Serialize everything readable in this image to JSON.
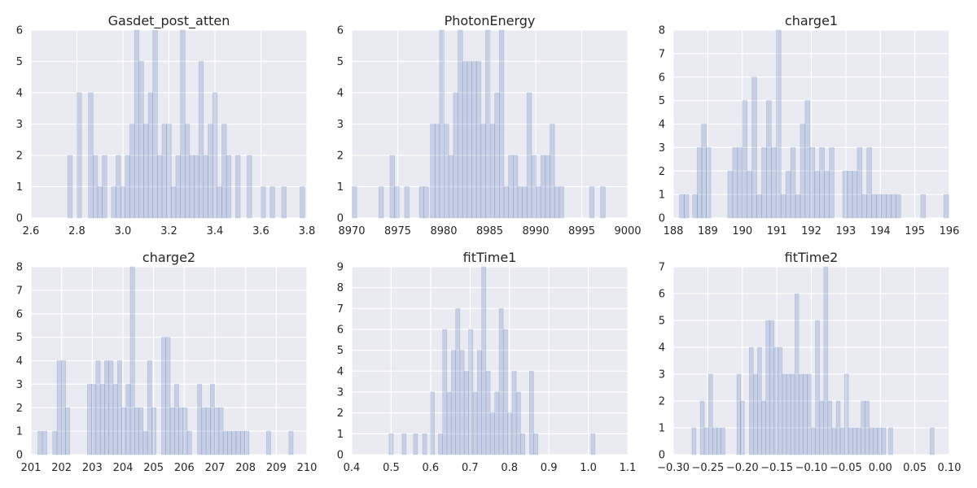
{
  "colors": {
    "bar": "#4c72b0",
    "background": "#eaeaf2",
    "grid": "#ffffff",
    "text": "#262626"
  },
  "chart_data": [
    {
      "type": "bar",
      "title": "Gasdet_post_atten",
      "xlim": [
        2.6,
        3.8
      ],
      "ylim": [
        0,
        6
      ],
      "xticks": [
        2.6,
        2.8,
        3.0,
        3.2,
        3.4,
        3.6,
        3.8
      ],
      "xtick_labels": [
        "2.6",
        "2.8",
        "3.0",
        "3.2",
        "3.4",
        "3.6",
        "3.8"
      ],
      "yticks": [
        0,
        1,
        2,
        3,
        4,
        5,
        6
      ],
      "ytick_labels": [
        "0",
        "1",
        "2",
        "3",
        "4",
        "5",
        "6"
      ],
      "bin_width": 0.02,
      "x": [
        2.77,
        2.81,
        2.86,
        2.88,
        2.9,
        2.92,
        2.96,
        2.98,
        3.0,
        3.02,
        3.04,
        3.06,
        3.08,
        3.1,
        3.12,
        3.14,
        3.16,
        3.18,
        3.2,
        3.22,
        3.24,
        3.26,
        3.28,
        3.3,
        3.32,
        3.34,
        3.36,
        3.38,
        3.4,
        3.42,
        3.44,
        3.46,
        3.5,
        3.55,
        3.61,
        3.65,
        3.7,
        3.78
      ],
      "values": [
        2,
        4,
        4,
        2,
        1,
        2,
        1,
        2,
        1,
        2,
        3,
        6,
        5,
        3,
        4,
        6,
        2,
        3,
        3,
        1,
        2,
        6,
        3,
        2,
        2,
        5,
        2,
        3,
        4,
        1,
        3,
        2,
        2,
        2,
        1,
        1,
        1,
        1
      ]
    },
    {
      "type": "bar",
      "title": "PhotonEnergy",
      "xlim": [
        8970,
        9000
      ],
      "ylim": [
        0,
        6
      ],
      "xticks": [
        8970,
        8975,
        8980,
        8985,
        8990,
        8995,
        9000
      ],
      "xtick_labels": [
        "8970",
        "8975",
        "8980",
        "8985",
        "8990",
        "8995",
        "9000"
      ],
      "yticks": [
        0,
        1,
        2,
        3,
        4,
        5,
        6
      ],
      "ytick_labels": [
        "0",
        "1",
        "2",
        "3",
        "4",
        "5",
        "6"
      ],
      "bin_width": 0.5,
      "x": [
        8970.3,
        8973.2,
        8974.4,
        8974.9,
        8976.0,
        8977.6,
        8978.1,
        8978.8,
        8979.3,
        8979.8,
        8980.3,
        8980.8,
        8981.3,
        8981.8,
        8982.3,
        8982.8,
        8983.3,
        8983.8,
        8984.3,
        8984.8,
        8985.3,
        8985.8,
        8986.3,
        8986.8,
        8987.3,
        8987.8,
        8988.3,
        8988.8,
        8989.3,
        8989.8,
        8990.3,
        8990.8,
        8991.3,
        8991.8,
        8992.3,
        8992.8,
        8996.1,
        8997.3
      ],
      "values": [
        1,
        1,
        2,
        1,
        1,
        1,
        1,
        3,
        3,
        6,
        3,
        2,
        4,
        6,
        5,
        5,
        5,
        5,
        3,
        6,
        3,
        4,
        6,
        1,
        2,
        2,
        1,
        1,
        4,
        2,
        1,
        2,
        2,
        3,
        1,
        1,
        1,
        1
      ]
    },
    {
      "type": "bar",
      "title": "charge1",
      "xlim": [
        188,
        196
      ],
      "ylim": [
        0,
        8
      ],
      "xticks": [
        188,
        189,
        190,
        191,
        192,
        193,
        194,
        195,
        196
      ],
      "xtick_labels": [
        "188",
        "189",
        "190",
        "191",
        "192",
        "193",
        "194",
        "195",
        "196"
      ],
      "yticks": [
        0,
        1,
        2,
        3,
        4,
        5,
        6,
        7,
        8
      ],
      "ytick_labels": [
        "0",
        "1",
        "2",
        "3",
        "4",
        "5",
        "6",
        "7",
        "8"
      ],
      "bin_width": 0.14,
      "x": [
        188.25,
        188.38,
        188.63,
        188.76,
        188.89,
        189.02,
        189.65,
        189.79,
        189.93,
        190.07,
        190.21,
        190.35,
        190.49,
        190.63,
        190.77,
        190.91,
        191.05,
        191.19,
        191.33,
        191.47,
        191.61,
        191.75,
        191.89,
        192.03,
        192.17,
        192.31,
        192.45,
        192.59,
        192.98,
        193.12,
        193.26,
        193.4,
        193.54,
        193.68,
        193.82,
        193.96,
        194.1,
        194.24,
        194.38,
        194.52,
        195.24,
        195.91
      ],
      "values": [
        1,
        1,
        1,
        3,
        4,
        3,
        2,
        3,
        3,
        5,
        2,
        6,
        1,
        3,
        5,
        3,
        8,
        1,
        2,
        3,
        1,
        4,
        5,
        3,
        2,
        3,
        2,
        3,
        2,
        2,
        2,
        3,
        1,
        3,
        1,
        1,
        1,
        1,
        1,
        1,
        1,
        1
      ]
    },
    {
      "type": "bar",
      "title": "charge2",
      "xlim": [
        201,
        210
      ],
      "ylim": [
        0,
        8
      ],
      "xticks": [
        201,
        202,
        203,
        204,
        205,
        206,
        207,
        208,
        209,
        210
      ],
      "xtick_labels": [
        "201",
        "202",
        "203",
        "204",
        "205",
        "206",
        "207",
        "208",
        "209",
        "210"
      ],
      "yticks": [
        0,
        1,
        2,
        3,
        4,
        5,
        6,
        7,
        8
      ],
      "ytick_labels": [
        "0",
        "1",
        "2",
        "3",
        "4",
        "5",
        "6",
        "7",
        "8"
      ],
      "bin_width": 0.14,
      "x": [
        201.3,
        201.45,
        201.78,
        201.92,
        202.06,
        202.2,
        202.91,
        203.05,
        203.19,
        203.33,
        203.47,
        203.61,
        203.75,
        203.89,
        204.03,
        204.17,
        204.31,
        204.45,
        204.59,
        204.73,
        204.87,
        205.01,
        205.33,
        205.47,
        205.61,
        205.75,
        205.89,
        206.03,
        206.17,
        206.5,
        206.64,
        206.78,
        206.92,
        207.06,
        207.2,
        207.34,
        207.48,
        207.62,
        207.76,
        207.9,
        208.04,
        208.75,
        209.48
      ],
      "values": [
        1,
        1,
        1,
        4,
        4,
        2,
        3,
        3,
        4,
        3,
        4,
        4,
        3,
        4,
        2,
        3,
        8,
        2,
        2,
        1,
        4,
        2,
        5,
        5,
        2,
        3,
        2,
        2,
        1,
        3,
        2,
        2,
        3,
        2,
        2,
        1,
        1,
        1,
        1,
        1,
        1,
        1,
        1
      ]
    },
    {
      "type": "bar",
      "title": "fitTime1",
      "xlim": [
        0.4,
        1.1
      ],
      "ylim": [
        0,
        9
      ],
      "xticks": [
        0.4,
        0.5,
        0.6,
        0.7,
        0.8,
        0.9,
        1.0,
        1.1
      ],
      "xtick_labels": [
        "0.4",
        "0.5",
        "0.6",
        "0.7",
        "0.8",
        "0.9",
        "1.0",
        "1.1"
      ],
      "yticks": [
        0,
        1,
        2,
        3,
        4,
        5,
        6,
        7,
        8,
        9
      ],
      "ytick_labels": [
        "0",
        "1",
        "2",
        "3",
        "4",
        "5",
        "6",
        "7",
        "8",
        "9"
      ],
      "bin_width": 0.0105,
      "x": [
        0.5,
        0.533,
        0.562,
        0.585,
        0.605,
        0.625,
        0.636,
        0.647,
        0.658,
        0.669,
        0.68,
        0.691,
        0.702,
        0.713,
        0.724,
        0.735,
        0.746,
        0.757,
        0.768,
        0.779,
        0.79,
        0.801,
        0.812,
        0.823,
        0.834,
        0.856,
        0.867,
        1.012
      ],
      "values": [
        1,
        1,
        1,
        1,
        3,
        1,
        6,
        3,
        5,
        7,
        5,
        4,
        6,
        3,
        5,
        9,
        4,
        2,
        3,
        7,
        6,
        2,
        4,
        3,
        1,
        4,
        1,
        1
      ]
    },
    {
      "type": "bar",
      "title": "fitTime2",
      "xlim": [
        -0.3,
        0.1
      ],
      "ylim": [
        0,
        7
      ],
      "xticks": [
        -0.3,
        -0.25,
        -0.2,
        -0.15,
        -0.1,
        -0.05,
        0.0,
        0.05,
        0.1
      ],
      "xtick_labels": [
        "−0.30",
        "−0.25",
        "−0.20",
        "−0.15",
        "−0.10",
        "−0.05",
        "0.00",
        "0.05",
        "0.10"
      ],
      "yticks": [
        0,
        1,
        2,
        3,
        4,
        5,
        6,
        7
      ],
      "ytick_labels": [
        "0",
        "1",
        "2",
        "3",
        "4",
        "5",
        "6",
        "7"
      ],
      "bin_width": 0.0058,
      "x": [
        -0.27,
        -0.258,
        -0.252,
        -0.246,
        -0.24,
        -0.234,
        -0.228,
        -0.205,
        -0.2,
        -0.187,
        -0.181,
        -0.175,
        -0.169,
        -0.163,
        -0.157,
        -0.151,
        -0.145,
        -0.139,
        -0.133,
        -0.127,
        -0.121,
        -0.115,
        -0.109,
        -0.103,
        -0.097,
        -0.091,
        -0.085,
        -0.079,
        -0.073,
        -0.067,
        -0.061,
        -0.055,
        -0.049,
        -0.043,
        -0.037,
        -0.031,
        -0.025,
        -0.019,
        -0.013,
        -0.007,
        -0.001,
        0.005,
        0.015,
        0.075
      ],
      "values": [
        1,
        2,
        1,
        3,
        1,
        1,
        1,
        3,
        2,
        4,
        3,
        4,
        2,
        5,
        5,
        4,
        4,
        3,
        3,
        3,
        6,
        3,
        3,
        3,
        1,
        5,
        2,
        7,
        2,
        1,
        2,
        1,
        3,
        1,
        1,
        1,
        2,
        2,
        1,
        1,
        1,
        1,
        1,
        1
      ]
    }
  ]
}
